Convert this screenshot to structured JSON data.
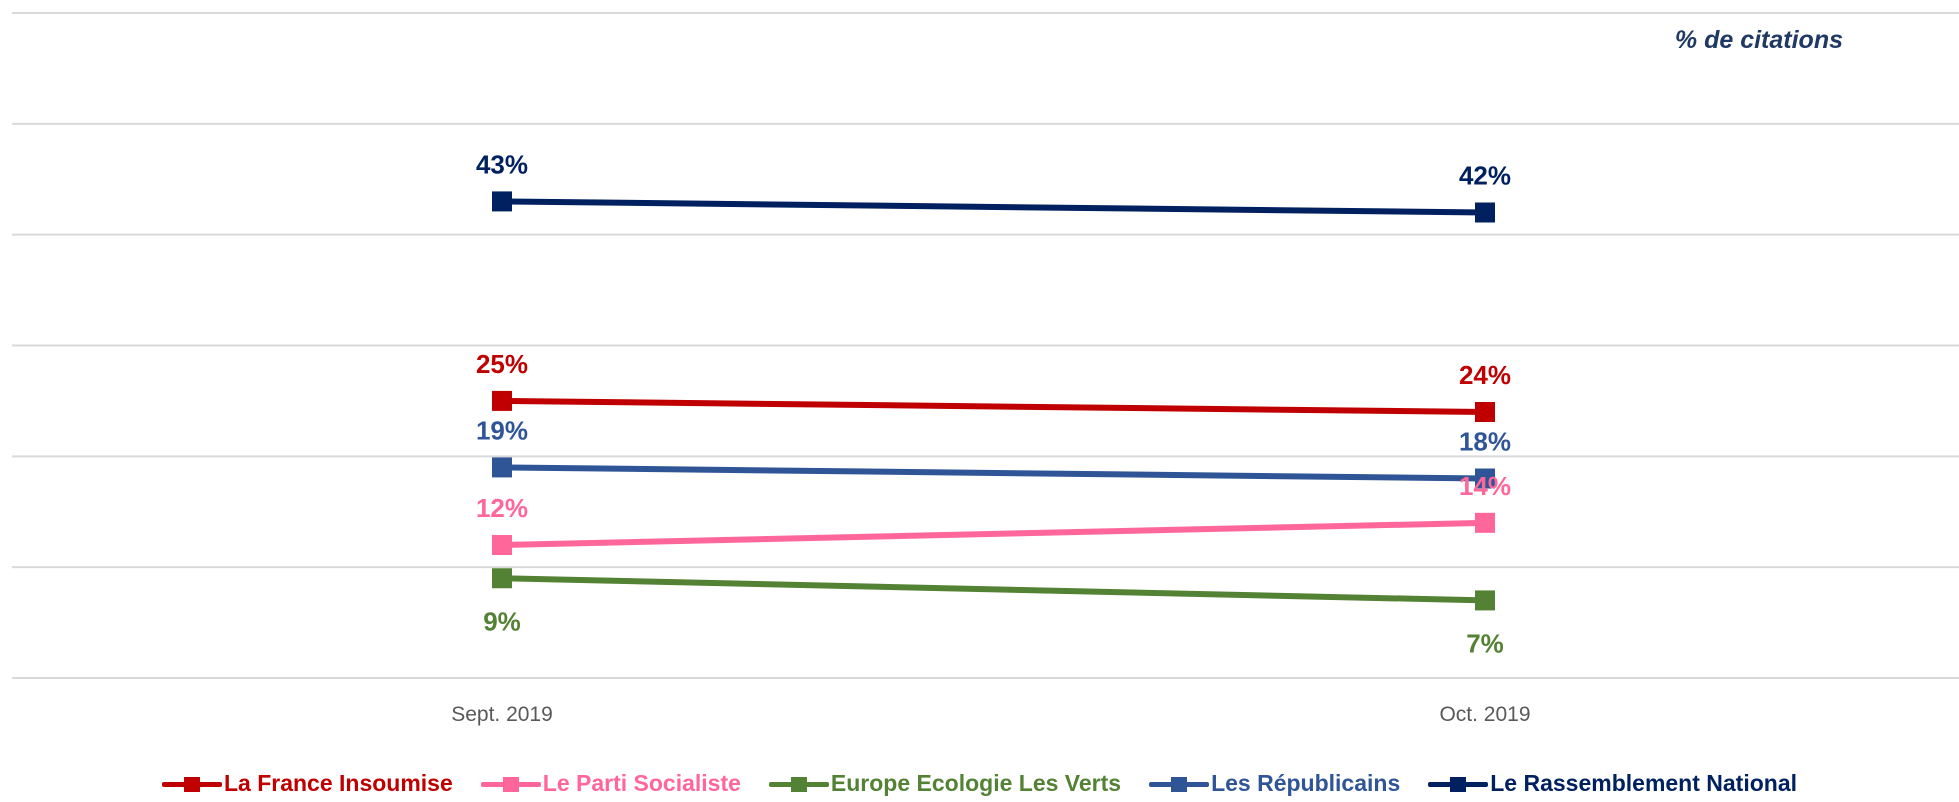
{
  "unit_label": "% de citations",
  "chart_data": {
    "type": "line",
    "categories": [
      "Sept. 2019",
      "Oct. 2019"
    ],
    "ylim": [
      0,
      60
    ],
    "grid": true,
    "legend_position": "bottom",
    "series": [
      {
        "name": "La France Insoumise",
        "values": [
          25,
          24
        ],
        "labels": [
          "25%",
          "24%"
        ],
        "color": "#C00000",
        "label_position": "above"
      },
      {
        "name": "Le Parti Socialiste",
        "values": [
          12,
          14
        ],
        "labels": [
          "12%",
          "14%"
        ],
        "color": "#FF6699",
        "label_position": "above"
      },
      {
        "name": "Europe Ecologie Les Verts",
        "values": [
          9,
          7
        ],
        "labels": [
          "9%",
          "7%"
        ],
        "color": "#548235",
        "label_position": "below"
      },
      {
        "name": "Les Républicains",
        "values": [
          19,
          18
        ],
        "labels": [
          "19%",
          "18%"
        ],
        "color": "#2F5597",
        "label_position": "above"
      },
      {
        "name": "Le Rassemblement National",
        "values": [
          43,
          42
        ],
        "labels": [
          "43%",
          "42%"
        ],
        "color": "#002060",
        "label_position": "above"
      }
    ]
  }
}
